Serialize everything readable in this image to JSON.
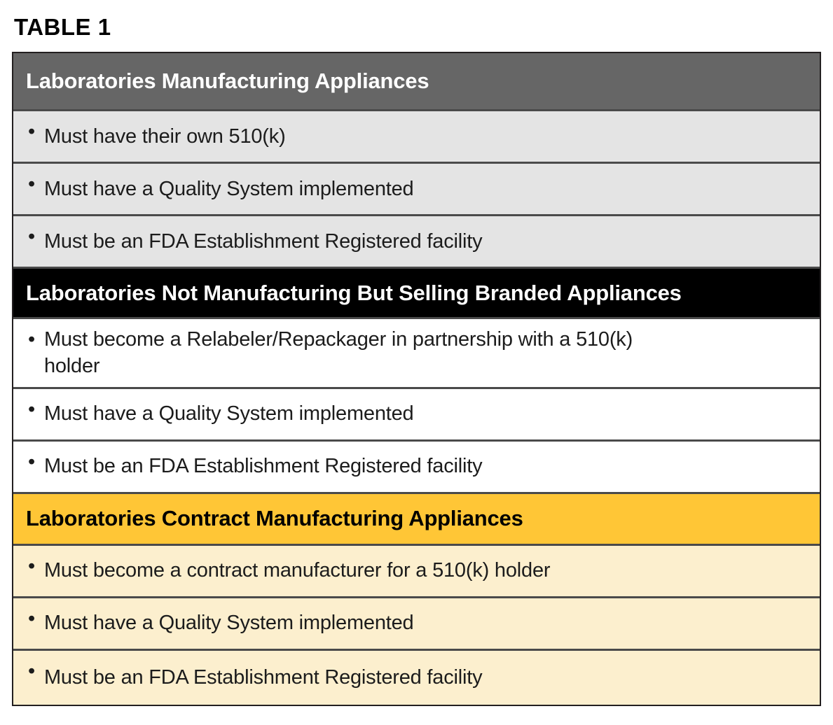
{
  "page": {
    "title": "TABLE 1"
  },
  "table": {
    "bullet": "•",
    "sections": [
      {
        "id": "laboratories-manufacturing",
        "header": "Laboratories Manufacturing Appliances",
        "header_bg": "#666666",
        "header_text_color": "#ffffff",
        "row_bg": "#e4e4e4",
        "items": [
          "Must have their own 510(k)",
          "Must have a Quality System implemented",
          "Must be an FDA Establishment Registered facility"
        ]
      },
      {
        "id": "laboratories-not-manufacturing-selling-branded",
        "header": "Laboratories Not Manufacturing But Selling Branded Appliances",
        "header_bg": "#000000",
        "header_text_color": "#ffffff",
        "row_bg": "#ffffff",
        "items": [
          "Must become a Relabeler/Repackager in partnership with a 510(k) holder",
          "Must have a Quality System implemented",
          "Must be an FDA Establishment Registered facility"
        ]
      },
      {
        "id": "laboratories-contract-manufacturing",
        "header": "Laboratories Contract Manufacturing Appliances",
        "header_bg": "#ffc636",
        "header_text_color": "#000000",
        "row_bg": "#fcefce",
        "items": [
          "Must become a contract manufacturer for a 510(k) holder",
          "Must have a Quality System implemented",
          "Must be an FDA Establishment Registered facility"
        ]
      }
    ],
    "colors": {
      "outer_border": "#231f20",
      "divider": "#4a4a4a",
      "body_text": "#1c1c1c"
    }
  }
}
